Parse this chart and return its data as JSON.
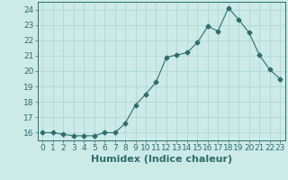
{
  "x": [
    0,
    1,
    2,
    3,
    4,
    5,
    6,
    7,
    8,
    9,
    10,
    11,
    12,
    13,
    14,
    15,
    16,
    17,
    18,
    19,
    20,
    21,
    22,
    23
  ],
  "y": [
    16.0,
    16.0,
    15.9,
    15.8,
    15.8,
    15.8,
    16.0,
    16.0,
    16.6,
    17.8,
    18.5,
    19.3,
    20.9,
    21.05,
    21.2,
    21.85,
    22.9,
    22.6,
    24.1,
    23.35,
    22.5,
    21.05,
    20.1,
    19.5
  ],
  "line_color": "#2e6e6a",
  "marker": "D",
  "marker_size": 2.5,
  "bg_color": "#cceae8",
  "grid_color": "#aad4d0",
  "xlabel": "Humidex (Indice chaleur)",
  "xlabel_fontsize": 8,
  "ylim": [
    15.5,
    24.5
  ],
  "xlim": [
    -0.5,
    23.5
  ],
  "yticks": [
    16,
    17,
    18,
    19,
    20,
    21,
    22,
    23,
    24
  ],
  "xticks": [
    0,
    1,
    2,
    3,
    4,
    5,
    6,
    7,
    8,
    9,
    10,
    11,
    12,
    13,
    14,
    15,
    16,
    17,
    18,
    19,
    20,
    21,
    22,
    23
  ],
  "tick_fontsize": 6.5,
  "ytick_fontsize": 6.5
}
